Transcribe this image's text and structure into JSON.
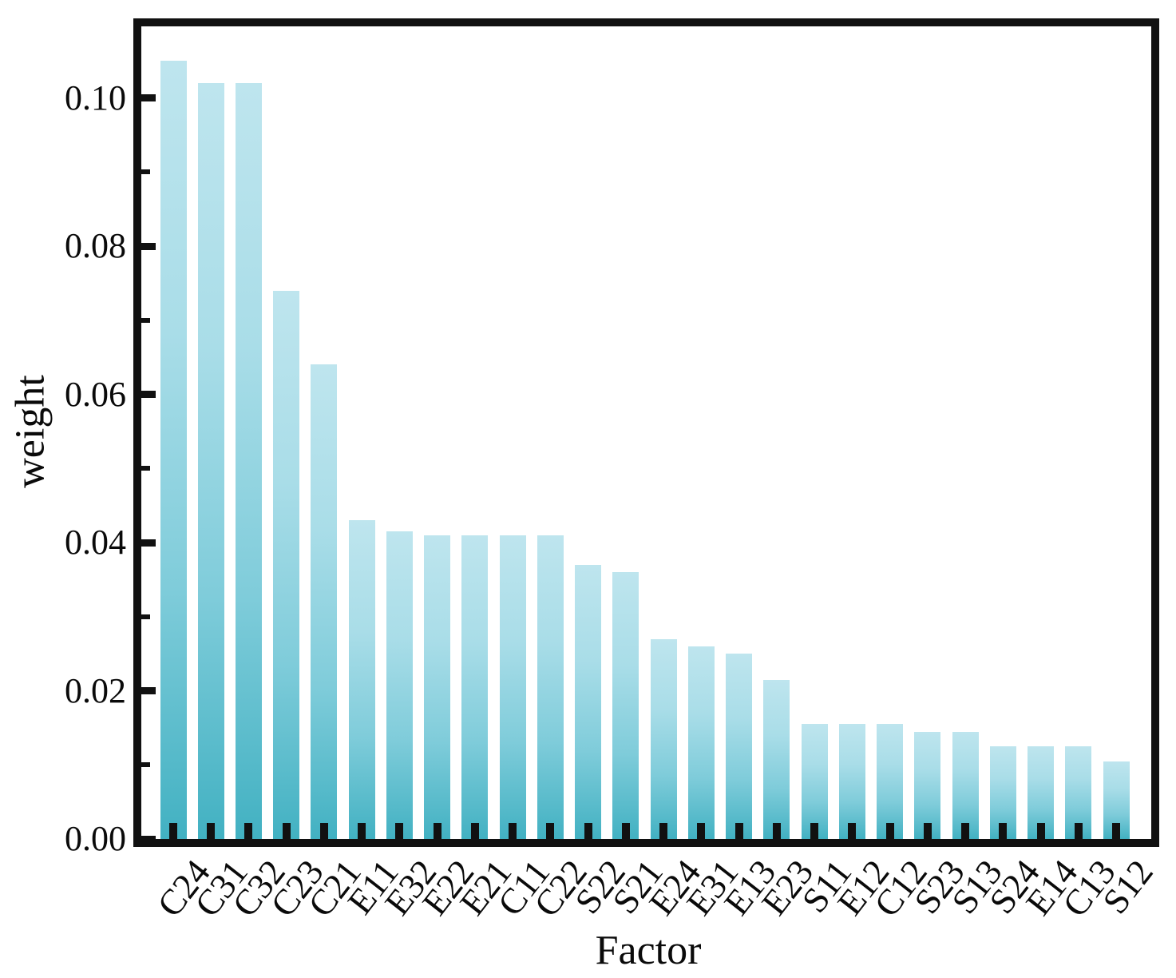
{
  "chart_data": {
    "type": "bar",
    "title": "",
    "xlabel": "Factor",
    "ylabel": "weight",
    "categories": [
      "C24",
      "C31",
      "C32",
      "C23",
      "C21",
      "E11",
      "E32",
      "E22",
      "E21",
      "C11",
      "C22",
      "S22",
      "S21",
      "E24",
      "E31",
      "E13",
      "E23",
      "S11",
      "E12",
      "C12",
      "S23",
      "S13",
      "S24",
      "E14",
      "C13",
      "S12"
    ],
    "values": [
      0.105,
      0.102,
      0.102,
      0.074,
      0.064,
      0.043,
      0.0415,
      0.041,
      0.041,
      0.041,
      0.041,
      0.037,
      0.036,
      0.027,
      0.026,
      0.025,
      0.0215,
      0.0155,
      0.0155,
      0.0155,
      0.0145,
      0.0145,
      0.0125,
      0.0125,
      0.0125,
      0.0105
    ],
    "ylim": [
      0,
      0.11
    ],
    "yticks": [
      0,
      0.02,
      0.04,
      0.06,
      0.08,
      0.1
    ],
    "ytick_labels": [
      "0.00",
      "0.02",
      "0.04",
      "0.06",
      "0.08",
      "0.10"
    ],
    "minor_yticks": [
      0.01,
      0.03,
      0.05,
      0.07,
      0.09
    ],
    "grid": false,
    "legend_position": "none",
    "bar_gradient_top": "#bee5ee",
    "bar_gradient_bottom": "#42b1c2",
    "axis_color": "#111111"
  }
}
